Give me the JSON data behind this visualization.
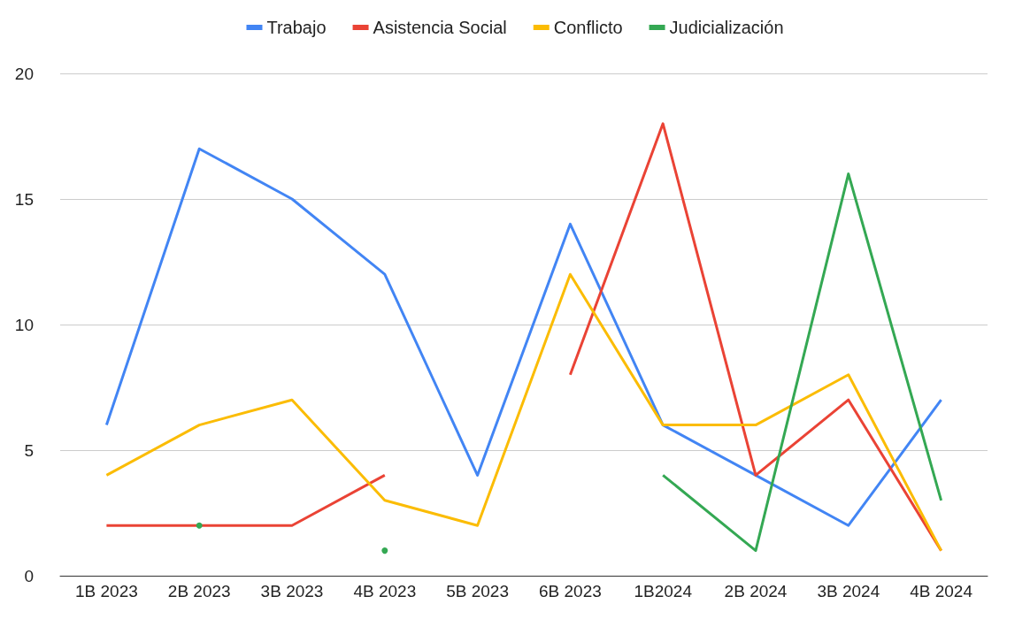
{
  "chart_data": {
    "type": "line",
    "categories": [
      "1B 2023",
      "2B 2023",
      "3B 2023",
      "4B 2023",
      "5B 2023",
      "6B 2023",
      "1B2024",
      "2B 2024",
      "3B 2024",
      "4B 2024"
    ],
    "series": [
      {
        "name": "Trabajo",
        "color": "#4285f4",
        "values": [
          6,
          17,
          15,
          12,
          4,
          14,
          6,
          4,
          2,
          7
        ]
      },
      {
        "name": "Asistencia Social",
        "color": "#ea4335",
        "values": [
          2,
          2,
          2,
          4,
          null,
          8,
          18,
          4,
          7,
          1
        ]
      },
      {
        "name": "Conflicto",
        "color": "#fbbc04",
        "values": [
          4,
          6,
          7,
          3,
          2,
          12,
          6,
          6,
          8,
          1
        ]
      },
      {
        "name": "Judicialización",
        "color": "#34a853",
        "values": [
          null,
          2,
          null,
          1,
          null,
          null,
          4,
          1,
          16,
          3
        ]
      }
    ],
    "ylim": [
      0,
      20
    ],
    "yticks": [
      0,
      5,
      10,
      15,
      20
    ],
    "grid": "y",
    "legend": "top",
    "marker": "none",
    "line_style": "solid"
  }
}
